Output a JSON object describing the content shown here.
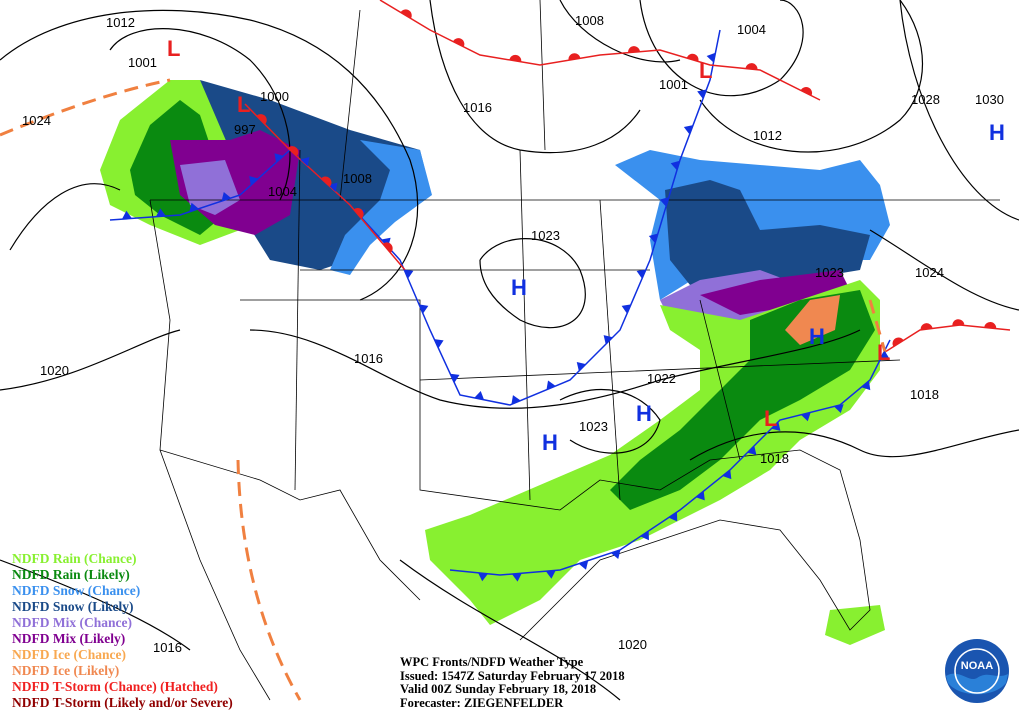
{
  "legend": [
    {
      "label": "NDFD Rain (Chance)",
      "color": "#88f030"
    },
    {
      "label": "NDFD Rain (Likely)",
      "color": "#0a8a10"
    },
    {
      "label": "NDFD Snow (Chance)",
      "color": "#3a90ee"
    },
    {
      "label": "NDFD Snow (Likely)",
      "color": "#1a4a88"
    },
    {
      "label": "NDFD Mix (Chance)",
      "color": "#9070d8"
    },
    {
      "label": "NDFD Mix (Likely)",
      "color": "#800090"
    },
    {
      "label": "NDFD Ice (Chance)",
      "color": "#f8a850"
    },
    {
      "label": "NDFD Ice (Likely)",
      "color": "#f08850"
    },
    {
      "label": "NDFD T-Storm (Chance) (Hatched)",
      "color": "#f02020"
    },
    {
      "label": "NDFD T-Storm (Likely and/or Severe)",
      "color": "#900000"
    }
  ],
  "info": {
    "title": "WPC Fronts/NDFD Weather Type",
    "issued": "Issued: 1547Z Saturday February 17 2018",
    "valid": "Valid 00Z Sunday February 18, 2018",
    "forecaster": "Forecaster: ZIEGENFELDER"
  },
  "isobar_labels": [
    "1012",
    "1001",
    "1024",
    "1000",
    "997",
    "1004",
    "1008",
    "1016",
    "1008",
    "1004",
    "1001",
    "1012",
    "1028",
    "1030",
    "1023",
    "1024",
    "1023",
    "1016",
    "1020",
    "1022",
    "1023",
    "1018",
    "1018",
    "1016",
    "1020"
  ],
  "pressure_centers": {
    "high": [
      "H",
      "H",
      "H",
      "H",
      "H"
    ],
    "low": [
      "L",
      "L",
      "L",
      "L",
      "L"
    ]
  },
  "colors": {
    "high": "#1030e0",
    "low": "#e82020",
    "cold_front": "#1030e0",
    "warm_front": "#e82020",
    "trough": "#f08040"
  },
  "logo": {
    "text": "NOAA"
  }
}
